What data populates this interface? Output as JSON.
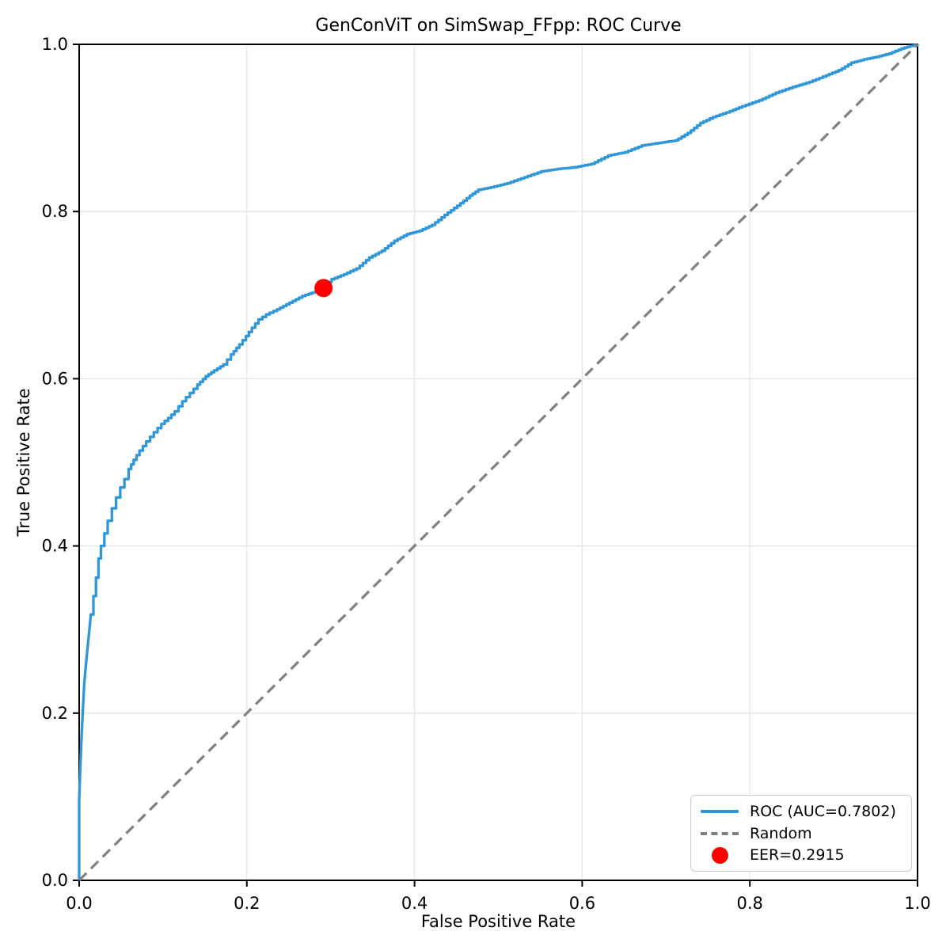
{
  "figure": {
    "title": "GenConViT on SimSwap_FFpp: ROC Curve",
    "xlabel": "False Positive Rate",
    "ylabel": "True Positive Rate"
  },
  "legend": {
    "roc_label": "ROC (AUC=0.7802)",
    "random_label": "Random",
    "eer_label": "EER=0.2915"
  },
  "chart_data": {
    "type": "line",
    "title": "GenConViT on SimSwap_FFpp: ROC Curve",
    "xlabel": "False Positive Rate",
    "ylabel": "True Positive Rate",
    "xlim": [
      0,
      1
    ],
    "ylim": [
      0,
      1
    ],
    "xtick_labels": [
      "0.0",
      "0.2",
      "0.4",
      "0.6",
      "0.8",
      "1.0"
    ],
    "ytick_labels": [
      "0.0",
      "0.2",
      "0.4",
      "0.6",
      "0.8",
      "1.0"
    ],
    "grid": true,
    "legend_position": "lower right",
    "auc": 0.7802,
    "eer": 0.2915,
    "colors": {
      "roc": "#2e96d9",
      "random": "#808080",
      "eer": "#ff0000",
      "grid": "#e5e5e5",
      "spine": "#000000"
    },
    "series": [
      {
        "name": "ROC (AUC=0.7802)",
        "style": "step-line",
        "color": "#2e96d9",
        "points": [
          [
            0.0,
            0.0
          ],
          [
            0.0,
            0.095
          ],
          [
            0.001,
            0.125
          ],
          [
            0.002,
            0.15
          ],
          [
            0.003,
            0.175
          ],
          [
            0.004,
            0.195
          ],
          [
            0.005,
            0.215
          ],
          [
            0.006,
            0.235
          ],
          [
            0.008,
            0.258
          ],
          [
            0.01,
            0.278
          ],
          [
            0.012,
            0.298
          ],
          [
            0.014,
            0.318
          ],
          [
            0.017,
            0.34
          ],
          [
            0.02,
            0.362
          ],
          [
            0.023,
            0.385
          ],
          [
            0.026,
            0.4
          ],
          [
            0.03,
            0.415
          ],
          [
            0.034,
            0.43
          ],
          [
            0.039,
            0.445
          ],
          [
            0.044,
            0.458
          ],
          [
            0.049,
            0.47
          ],
          [
            0.054,
            0.48
          ],
          [
            0.059,
            0.492
          ],
          [
            0.065,
            0.503
          ],
          [
            0.072,
            0.514
          ],
          [
            0.08,
            0.525
          ],
          [
            0.089,
            0.536
          ],
          [
            0.098,
            0.546
          ],
          [
            0.106,
            0.553
          ],
          [
            0.114,
            0.561
          ],
          [
            0.123,
            0.573
          ],
          [
            0.132,
            0.583
          ],
          [
            0.141,
            0.593
          ],
          [
            0.151,
            0.603
          ],
          [
            0.161,
            0.61
          ],
          [
            0.172,
            0.617
          ],
          [
            0.181,
            0.629
          ],
          [
            0.191,
            0.641
          ],
          [
            0.199,
            0.651
          ],
          [
            0.206,
            0.661
          ],
          [
            0.214,
            0.671
          ],
          [
            0.223,
            0.677
          ],
          [
            0.236,
            0.683
          ],
          [
            0.251,
            0.691
          ],
          [
            0.266,
            0.699
          ],
          [
            0.281,
            0.704
          ],
          [
            0.2915,
            0.7085
          ],
          [
            0.301,
            0.719
          ],
          [
            0.316,
            0.725
          ],
          [
            0.331,
            0.732
          ],
          [
            0.346,
            0.745
          ],
          [
            0.361,
            0.753
          ],
          [
            0.376,
            0.765
          ],
          [
            0.391,
            0.773
          ],
          [
            0.406,
            0.777
          ],
          [
            0.421,
            0.784
          ],
          [
            0.436,
            0.796
          ],
          [
            0.451,
            0.807
          ],
          [
            0.466,
            0.819
          ],
          [
            0.476,
            0.826
          ],
          [
            0.491,
            0.829
          ],
          [
            0.511,
            0.834
          ],
          [
            0.531,
            0.841
          ],
          [
            0.551,
            0.848
          ],
          [
            0.571,
            0.851
          ],
          [
            0.591,
            0.853
          ],
          [
            0.611,
            0.857
          ],
          [
            0.631,
            0.867
          ],
          [
            0.651,
            0.871
          ],
          [
            0.671,
            0.879
          ],
          [
            0.691,
            0.882
          ],
          [
            0.711,
            0.885
          ],
          [
            0.726,
            0.894
          ],
          [
            0.741,
            0.906
          ],
          [
            0.756,
            0.913
          ],
          [
            0.776,
            0.92
          ],
          [
            0.791,
            0.926
          ],
          [
            0.811,
            0.933
          ],
          [
            0.831,
            0.942
          ],
          [
            0.851,
            0.949
          ],
          [
            0.871,
            0.955
          ],
          [
            0.891,
            0.963
          ],
          [
            0.906,
            0.969
          ],
          [
            0.921,
            0.978
          ],
          [
            0.936,
            0.982
          ],
          [
            0.951,
            0.985
          ],
          [
            0.966,
            0.989
          ],
          [
            0.981,
            0.995
          ],
          [
            0.991,
            0.998
          ],
          [
            1.0,
            1.0
          ]
        ]
      },
      {
        "name": "Random",
        "style": "dashed-line",
        "color": "#808080",
        "points": [
          [
            0,
            0
          ],
          [
            1,
            1
          ]
        ]
      },
      {
        "name": "EER=0.2915",
        "style": "point",
        "color": "#ff0000",
        "points": [
          [
            0.2915,
            0.7085
          ]
        ]
      }
    ]
  }
}
